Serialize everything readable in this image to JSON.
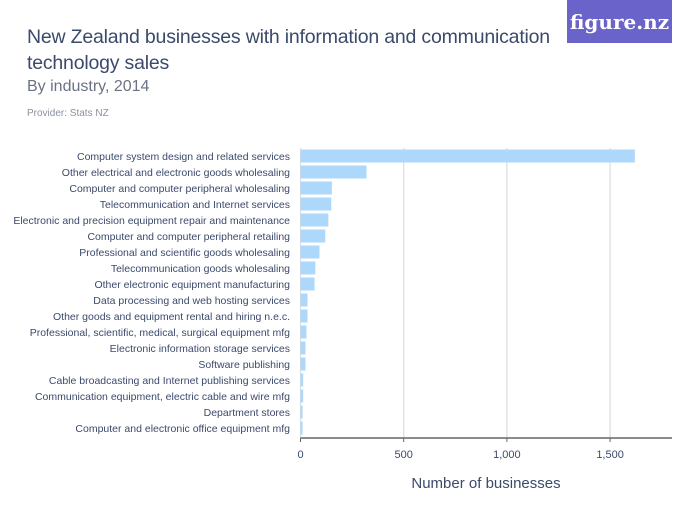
{
  "header": {
    "title": "New Zealand businesses with information and communication technology sales",
    "subtitle": "By industry, 2014",
    "provider": "Provider: Stats NZ",
    "logo": "figure.nz"
  },
  "colors": {
    "bar": "#aed8fb",
    "grid": "#dddddd",
    "axis": "#666666",
    "logo_bg": "#6a63c9"
  },
  "chart_data": {
    "type": "bar",
    "orientation": "horizontal",
    "title": "New Zealand businesses with information and communication technology sales",
    "subtitle": "By industry, 2014",
    "xlabel": "Number of businesses",
    "ylabel": "",
    "xlim": [
      0,
      1800
    ],
    "xticks": [
      0,
      500,
      1000,
      1500
    ],
    "xtick_labels": [
      "0",
      "500",
      "1,000",
      "1,500"
    ],
    "grid": true,
    "categories": [
      "Computer system design and related services",
      "Other electrical and electronic goods wholesaling",
      "Computer and computer peripheral wholesaling",
      "Telecommunication and Internet services",
      "Electronic and precision equipment repair and maintenance",
      "Computer and computer peripheral retailing",
      "Professional and scientific goods wholesaling",
      "Telecommunication goods wholesaling",
      "Other electronic equipment manufacturing",
      "Data processing and web hosting services",
      "Other goods and equipment rental and hiring n.e.c.",
      "Professional, scientific, medical, surgical equipment mfg",
      "Electronic information storage services",
      "Software publishing",
      "Cable broadcasting and Internet publishing services",
      "Communication equipment, electric cable and wire mfg",
      "Department stores",
      "Computer and electronic office equipment mfg"
    ],
    "values": [
      1620,
      320,
      152,
      149,
      135,
      120,
      92,
      72,
      68,
      34,
      34,
      29,
      24,
      24,
      13,
      13,
      10,
      10
    ]
  }
}
